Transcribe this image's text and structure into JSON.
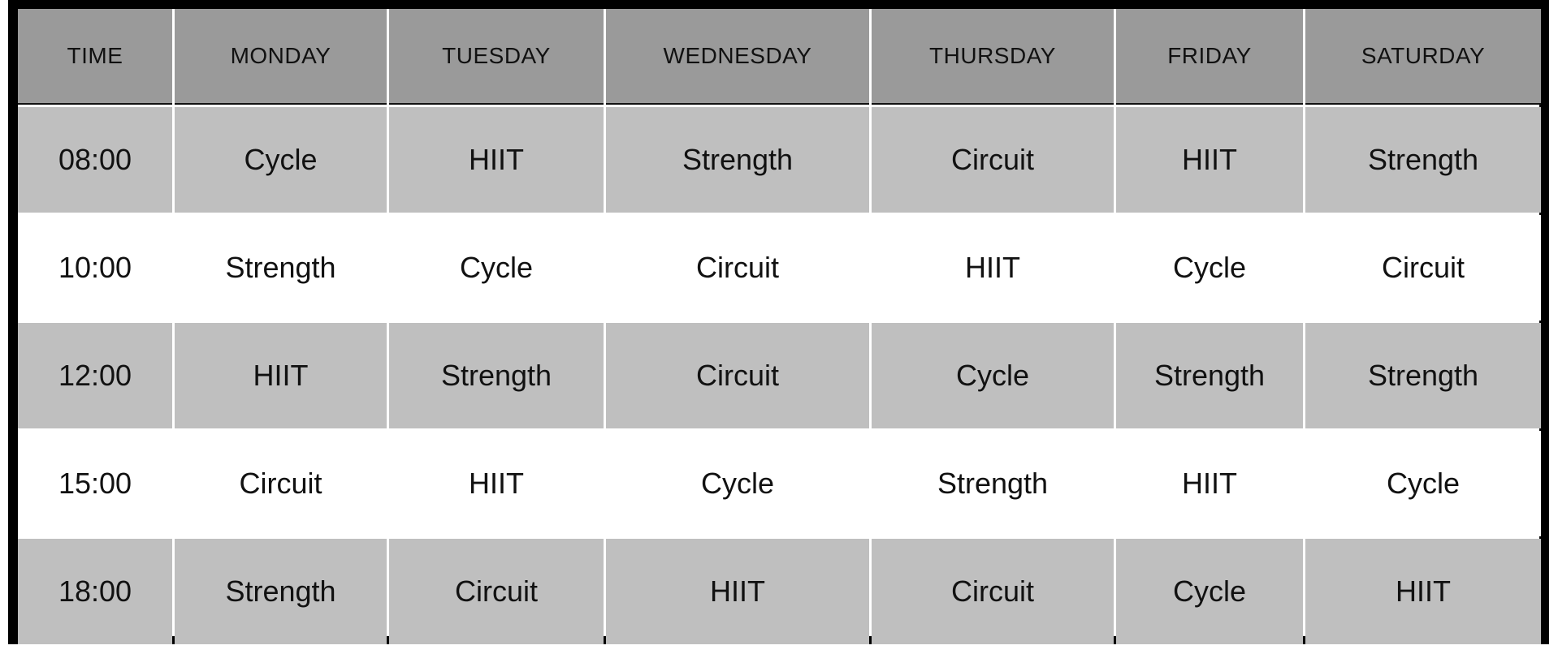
{
  "schedule": {
    "headers": [
      "TIME",
      "MONDAY",
      "TUESDAY",
      "WEDNESDAY",
      "THURSDAY",
      "FRIDAY",
      "SATURDAY"
    ],
    "rows": [
      {
        "time": "08:00",
        "classes": [
          "Cycle",
          "HIIT",
          "Strength",
          "Circuit",
          "HIIT",
          "Strength"
        ]
      },
      {
        "time": "10:00",
        "classes": [
          "Strength",
          "Cycle",
          "Circuit",
          "HIIT",
          "Cycle",
          "Circuit"
        ]
      },
      {
        "time": "12:00",
        "classes": [
          "HIIT",
          "Strength",
          "Circuit",
          "Cycle",
          "Strength",
          "Strength"
        ]
      },
      {
        "time": "15:00",
        "classes": [
          "Circuit",
          "HIIT",
          "Cycle",
          "Strength",
          "HIIT",
          "Cycle"
        ]
      },
      {
        "time": "18:00",
        "classes": [
          "Strength",
          "Circuit",
          "HIIT",
          "Circuit",
          "Cycle",
          "HIIT"
        ]
      }
    ]
  },
  "colors": {
    "header_bg": "#9a9a9a",
    "shaded_row_bg": "#bfbfbf",
    "plain_row_bg": "#ffffff",
    "frame": "#000000"
  }
}
